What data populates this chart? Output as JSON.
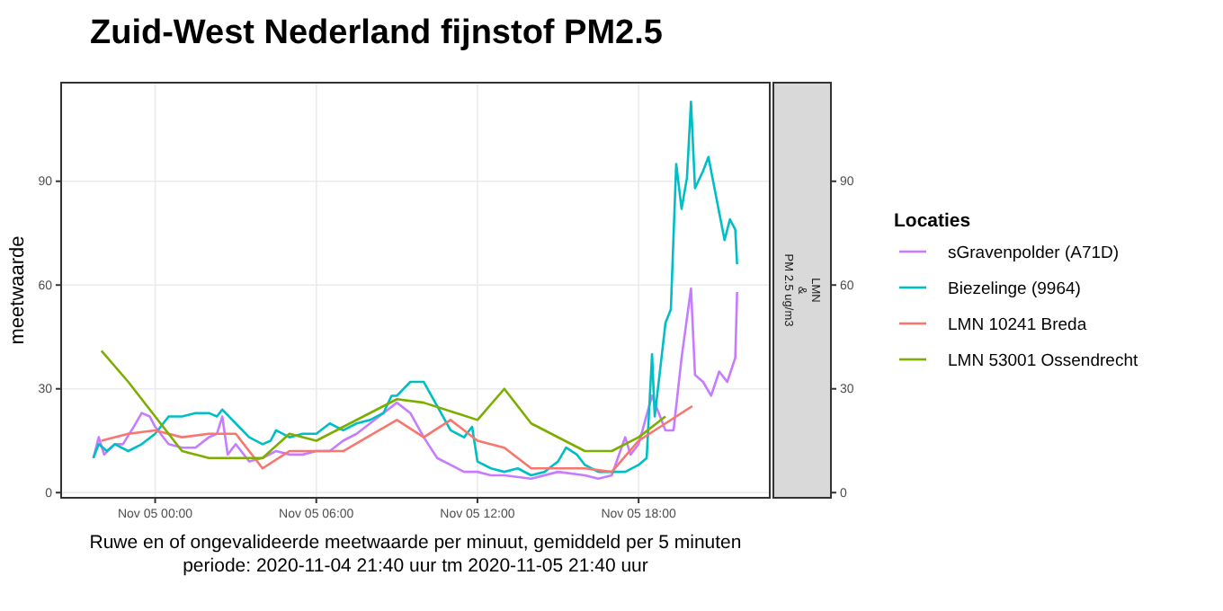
{
  "chart_data": {
    "type": "line",
    "title": "Zuid-West Nederland fijnstof PM2.5",
    "ylabel": "meetwaarde",
    "xlabel": "Ruwe en of ongevalideerde meetwaarde per minuut, gemiddeld per 5 minuten\nperiode: 2020-11-04 21:40 uur tm 2020-11-05 21:40 uur",
    "legend_title": "Locaties",
    "legend": "right",
    "grid": true,
    "annotations": [
      "LMN\n&\nPM 2.5 ug/m3"
    ],
    "xlim": [
      "2020-11-04T20:30",
      "2020-11-05T22:53"
    ],
    "xticks": [
      {
        "value": "2020-11-05T00:00",
        "label": "Nov 05 00:00"
      },
      {
        "value": "2020-11-05T06:00",
        "label": "Nov 05 06:00"
      },
      {
        "value": "2020-11-05T12:00",
        "label": "Nov 05 12:00"
      },
      {
        "value": "2020-11-05T18:00",
        "label": "Nov 05 18:00"
      }
    ],
    "ylim": [
      -1.5,
      118.5
    ],
    "yticks": [
      0,
      30,
      60,
      90
    ],
    "y2lim": [
      -1.5,
      118.5
    ],
    "y2ticks": [
      0,
      30,
      60,
      90
    ],
    "series": [
      {
        "name": "sGravenpolder (A71D)",
        "color": "#c77cff",
        "x": [
          "2020-11-04T21:42",
          "2020-11-04T21:54",
          "2020-11-04T22:06",
          "2020-11-04T22:30",
          "2020-11-04T22:48",
          "2020-11-04T23:12",
          "2020-11-04T23:30",
          "2020-11-04T23:48",
          "2020-11-05T00:00",
          "2020-11-05T00:30",
          "2020-11-05T01:00",
          "2020-11-05T01:30",
          "2020-11-05T02:00",
          "2020-11-05T02:18",
          "2020-11-05T02:30",
          "2020-11-05T02:42",
          "2020-11-05T03:00",
          "2020-11-05T03:30",
          "2020-11-05T04:00",
          "2020-11-05T04:30",
          "2020-11-05T05:00",
          "2020-11-05T05:30",
          "2020-11-05T06:00",
          "2020-11-05T06:30",
          "2020-11-05T07:00",
          "2020-11-05T07:30",
          "2020-11-05T08:00",
          "2020-11-05T08:30",
          "2020-11-05T09:00",
          "2020-11-05T09:30",
          "2020-11-05T10:00",
          "2020-11-05T10:30",
          "2020-11-05T11:00",
          "2020-11-05T11:30",
          "2020-11-05T12:00",
          "2020-11-05T12:30",
          "2020-11-05T13:00",
          "2020-11-05T14:00",
          "2020-11-05T15:00",
          "2020-11-05T16:00",
          "2020-11-05T16:30",
          "2020-11-05T17:00",
          "2020-11-05T17:30",
          "2020-11-05T17:42",
          "2020-11-05T18:00",
          "2020-11-05T18:30",
          "2020-11-05T18:48",
          "2020-11-05T19:00",
          "2020-11-05T19:18",
          "2020-11-05T19:36",
          "2020-11-05T19:57",
          "2020-11-05T20:06",
          "2020-11-05T20:24",
          "2020-11-05T20:42",
          "2020-11-05T21:00",
          "2020-11-05T21:18",
          "2020-11-05T21:36",
          "2020-11-05T21:40"
        ],
        "values": [
          10,
          16,
          11,
          14,
          14,
          19,
          23,
          22,
          19,
          14,
          13,
          13,
          16,
          17,
          22,
          11,
          14,
          9,
          10,
          12,
          11,
          11,
          12,
          12,
          15,
          17,
          20,
          23,
          26,
          23,
          16,
          10,
          8,
          6,
          6,
          5,
          5,
          4,
          6,
          5,
          4,
          5,
          16,
          11,
          14,
          28,
          22,
          18,
          18,
          39,
          59,
          34,
          32,
          28,
          35,
          32,
          39,
          58
        ]
      },
      {
        "name": "Biezelinge (9964)",
        "color": "#00bfc4",
        "x": [
          "2020-11-04T21:42",
          "2020-11-04T21:54",
          "2020-11-04T22:12",
          "2020-11-04T22:30",
          "2020-11-04T23:00",
          "2020-11-04T23:30",
          "2020-11-05T00:00",
          "2020-11-05T00:30",
          "2020-11-05T01:00",
          "2020-11-05T01:30",
          "2020-11-05T02:00",
          "2020-11-05T02:18",
          "2020-11-05T02:30",
          "2020-11-05T03:00",
          "2020-11-05T03:30",
          "2020-11-05T04:00",
          "2020-11-05T04:18",
          "2020-11-05T04:30",
          "2020-11-05T05:00",
          "2020-11-05T05:30",
          "2020-11-05T06:00",
          "2020-11-05T06:30",
          "2020-11-05T07:00",
          "2020-11-05T07:30",
          "2020-11-05T08:00",
          "2020-11-05T08:30",
          "2020-11-05T08:48",
          "2020-11-05T09:00",
          "2020-11-05T09:30",
          "2020-11-05T10:00",
          "2020-11-05T10:30",
          "2020-11-05T11:00",
          "2020-11-05T11:30",
          "2020-11-05T11:48",
          "2020-11-05T12:00",
          "2020-11-05T12:30",
          "2020-11-05T13:00",
          "2020-11-05T13:30",
          "2020-11-05T14:00",
          "2020-11-05T14:30",
          "2020-11-05T15:00",
          "2020-11-05T15:18",
          "2020-11-05T15:42",
          "2020-11-05T16:00",
          "2020-11-05T16:30",
          "2020-11-05T17:00",
          "2020-11-05T17:30",
          "2020-11-05T18:00",
          "2020-11-05T18:18",
          "2020-11-05T18:30",
          "2020-11-05T18:36",
          "2020-11-05T19:00",
          "2020-11-05T19:12",
          "2020-11-05T19:24",
          "2020-11-05T19:36",
          "2020-11-05T19:48",
          "2020-11-05T19:57",
          "2020-11-05T20:06",
          "2020-11-05T20:24",
          "2020-11-05T20:36",
          "2020-11-05T20:54",
          "2020-11-05T21:12",
          "2020-11-05T21:24",
          "2020-11-05T21:36",
          "2020-11-05T21:40"
        ],
        "values": [
          10,
          14,
          12,
          14,
          12,
          14,
          17,
          22,
          22,
          23,
          23,
          22,
          24,
          20,
          16,
          14,
          15,
          18,
          16,
          17,
          17,
          20,
          18,
          20,
          21,
          23,
          28,
          28,
          32,
          32,
          25,
          18,
          16,
          19,
          9,
          7,
          6,
          7,
          5,
          6,
          9,
          13,
          11,
          8,
          6,
          6,
          6,
          8,
          10,
          40,
          22,
          49,
          53,
          95,
          82,
          91,
          113,
          88,
          93,
          97,
          85,
          73,
          79,
          76,
          66
        ]
      },
      {
        "name": "LMN 10241 Breda",
        "color": "#f8766d",
        "x": [
          "2020-11-04T22:00",
          "2020-11-04T23:00",
          "2020-11-05T00:00",
          "2020-11-05T01:00",
          "2020-11-05T02:00",
          "2020-11-05T03:00",
          "2020-11-05T04:00",
          "2020-11-05T05:00",
          "2020-11-05T06:00",
          "2020-11-05T07:00",
          "2020-11-05T09:00",
          "2020-11-05T10:00",
          "2020-11-05T11:00",
          "2020-11-05T12:00",
          "2020-11-05T13:00",
          "2020-11-05T14:00",
          "2020-11-05T15:00",
          "2020-11-05T16:00",
          "2020-11-05T17:00",
          "2020-11-05T18:00",
          "2020-11-05T20:00"
        ],
        "values": [
          15,
          17,
          18,
          16,
          17,
          17,
          7,
          12,
          12,
          12,
          21,
          16,
          21,
          15,
          13,
          7,
          7,
          7,
          6,
          15,
          25
        ]
      },
      {
        "name": "LMN 53001 Ossendrecht",
        "color": "#7cae00",
        "x": [
          "2020-11-04T22:00",
          "2020-11-04T23:00",
          "2020-11-05T01:00",
          "2020-11-05T02:00",
          "2020-11-05T04:00",
          "2020-11-05T05:00",
          "2020-11-05T06:00",
          "2020-11-05T09:00",
          "2020-11-05T10:00",
          "2020-11-05T12:00",
          "2020-11-05T13:00",
          "2020-11-05T14:00",
          "2020-11-05T16:00",
          "2020-11-05T17:00",
          "2020-11-05T18:00",
          "2020-11-05T19:00"
        ],
        "values": [
          41,
          32,
          12,
          10,
          10,
          17,
          15,
          27,
          26,
          21,
          30,
          20,
          12,
          12,
          16,
          22
        ]
      }
    ]
  }
}
